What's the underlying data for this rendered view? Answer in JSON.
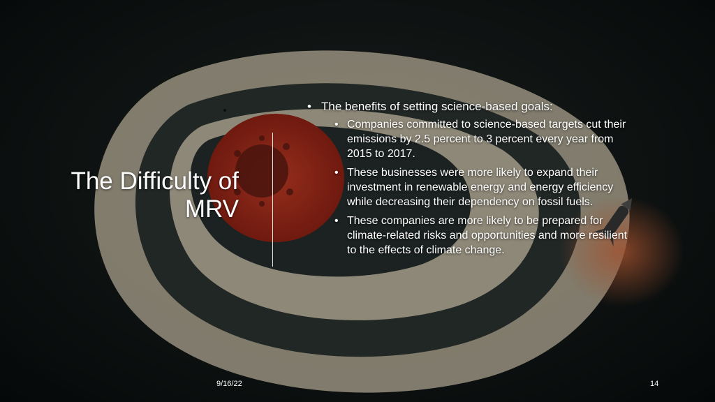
{
  "slide": {
    "title": "The Difficulty of MRV",
    "bullets": [
      {
        "text": "The benefits of setting science-based goals:",
        "children": [
          "Companies committed to science-based targets cut their emissions by 2.5 percent to 3 percent every year from 2015 to 2017.",
          "These businesses were more likely to expand their investment in renewable energy and energy efficiency while decreasing their dependency on fossil fuels.",
          "These companies are more likely to be prepared for climate-related risks and opportunities and more resilient to the effects of climate change."
        ]
      }
    ],
    "footer": {
      "date": "9/16/22",
      "page_number": "14"
    }
  },
  "background": {
    "image": "target-with-rocket-illustration",
    "colors": {
      "ring_cream": "#d8cfb8",
      "ring_dark": "#2b3433",
      "bullseye_red": "#b8301e",
      "rocket_glow": "#c8552a"
    }
  }
}
